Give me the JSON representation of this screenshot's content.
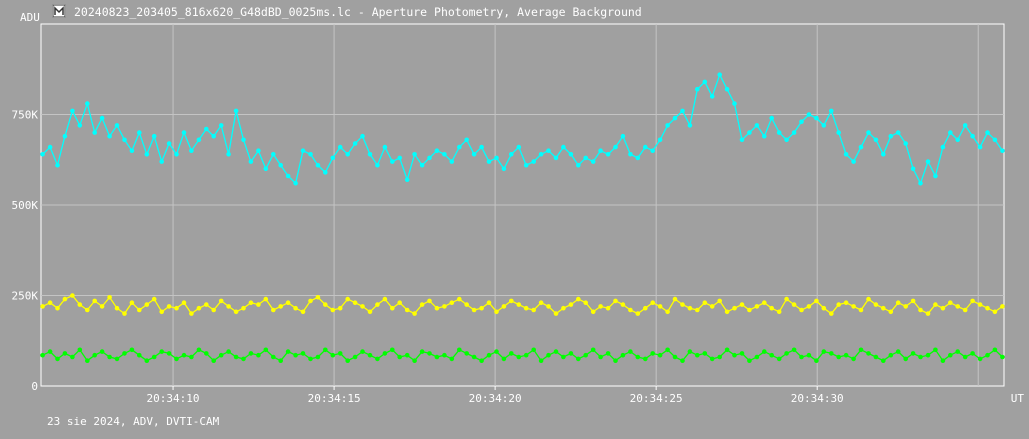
{
  "window": {
    "title": "20240823_203405_816x620_G48dBD_0025ms.lc - Aperture Photometry, Average Background",
    "footer": "23 sie 2024, ADV, DVTI-CAM"
  },
  "chart_data": {
    "type": "line",
    "title": "20240823_203405_816x620_G48dBD_0025ms.lc - Aperture Photometry, Average Background",
    "ylabel": "ADU",
    "xlabel": "UT",
    "ylim": [
      0,
      1000000
    ],
    "y_ticks": [
      {
        "value": 0,
        "label": "0"
      },
      {
        "value": 250000,
        "label": "250K"
      },
      {
        "value": 500000,
        "label": "500K"
      },
      {
        "value": 750000,
        "label": "750K"
      }
    ],
    "x_ticks": [
      {
        "value": 9.75,
        "label": "20:34:10"
      },
      {
        "value": 14.75,
        "label": "20:34:15"
      },
      {
        "value": 19.75,
        "label": "20:34:20"
      },
      {
        "value": 24.75,
        "label": "20:34:25"
      },
      {
        "value": 29.75,
        "label": "20:34:30"
      }
    ],
    "x_range_seconds": [
      5.65,
      35.55
    ],
    "x_unit": "s after 20:34:00 UT",
    "grid": true,
    "series": [
      {
        "color": "#00ffff",
        "x_start": 5.7,
        "x_end": 35.5,
        "values": [
          640000,
          660000,
          610000,
          690000,
          760000,
          720000,
          780000,
          700000,
          740000,
          690000,
          720000,
          680000,
          650000,
          700000,
          640000,
          690000,
          620000,
          670000,
          640000,
          700000,
          650000,
          680000,
          710000,
          690000,
          720000,
          640000,
          760000,
          680000,
          620000,
          650000,
          600000,
          640000,
          610000,
          580000,
          560000,
          650000,
          640000,
          610000,
          590000,
          630000,
          660000,
          640000,
          670000,
          690000,
          640000,
          610000,
          660000,
          620000,
          630000,
          570000,
          640000,
          610000,
          630000,
          650000,
          640000,
          620000,
          660000,
          680000,
          640000,
          660000,
          620000,
          630000,
          600000,
          640000,
          660000,
          610000,
          620000,
          640000,
          650000,
          630000,
          660000,
          640000,
          610000,
          630000,
          620000,
          650000,
          640000,
          660000,
          690000,
          640000,
          630000,
          660000,
          650000,
          680000,
          720000,
          740000,
          760000,
          720000,
          820000,
          840000,
          800000,
          860000,
          820000,
          780000,
          680000,
          700000,
          720000,
          690000,
          740000,
          700000,
          680000,
          700000,
          730000,
          750000,
          740000,
          720000,
          760000,
          700000,
          640000,
          620000,
          660000,
          700000,
          680000,
          640000,
          690000,
          700000,
          670000,
          600000,
          560000,
          620000,
          580000,
          660000,
          700000,
          680000,
          720000,
          690000,
          660000,
          700000,
          680000,
          650000
        ]
      },
      {
        "color": "#ffff00",
        "x_start": 5.7,
        "x_end": 35.5,
        "values": [
          220000,
          230000,
          215000,
          240000,
          250000,
          225000,
          210000,
          235000,
          220000,
          245000,
          215000,
          200000,
          230000,
          210000,
          225000,
          240000,
          205000,
          220000,
          215000,
          230000,
          200000,
          215000,
          225000,
          210000,
          235000,
          220000,
          205000,
          215000,
          230000,
          225000,
          240000,
          210000,
          220000,
          230000,
          215000,
          205000,
          235000,
          245000,
          225000,
          210000,
          215000,
          240000,
          230000,
          220000,
          205000,
          225000,
          240000,
          215000,
          230000,
          210000,
          200000,
          225000,
          235000,
          215000,
          220000,
          230000,
          240000,
          225000,
          210000,
          215000,
          230000,
          205000,
          220000,
          235000,
          225000,
          215000,
          210000,
          230000,
          220000,
          200000,
          215000,
          225000,
          240000,
          230000,
          205000,
          220000,
          215000,
          235000,
          225000,
          210000,
          200000,
          215000,
          230000,
          220000,
          205000,
          240000,
          225000,
          215000,
          210000,
          230000,
          220000,
          235000,
          205000,
          215000,
          225000,
          210000,
          220000,
          230000,
          215000,
          205000,
          240000,
          225000,
          210000,
          220000,
          235000,
          215000,
          200000,
          225000,
          230000,
          220000,
          210000,
          240000,
          225000,
          215000,
          205000,
          230000,
          220000,
          235000,
          210000,
          200000,
          225000,
          215000,
          230000,
          220000,
          210000,
          235000,
          225000,
          215000,
          205000,
          220000
        ]
      },
      {
        "color": "#00ff00",
        "x_start": 5.7,
        "x_end": 35.5,
        "values": [
          85000,
          95000,
          75000,
          90000,
          80000,
          100000,
          70000,
          85000,
          95000,
          80000,
          75000,
          90000,
          100000,
          85000,
          70000,
          80000,
          95000,
          90000,
          75000,
          85000,
          80000,
          100000,
          90000,
          70000,
          85000,
          95000,
          80000,
          75000,
          90000,
          85000,
          100000,
          80000,
          70000,
          95000,
          85000,
          90000,
          75000,
          80000,
          100000,
          85000,
          90000,
          70000,
          80000,
          95000,
          85000,
          75000,
          90000,
          100000,
          80000,
          85000,
          70000,
          95000,
          90000,
          80000,
          85000,
          75000,
          100000,
          90000,
          80000,
          70000,
          85000,
          95000,
          75000,
          90000,
          80000,
          85000,
          100000,
          70000,
          85000,
          95000,
          80000,
          90000,
          75000,
          85000,
          100000,
          80000,
          90000,
          70000,
          85000,
          95000,
          80000,
          75000,
          90000,
          85000,
          100000,
          80000,
          70000,
          95000,
          85000,
          90000,
          75000,
          80000,
          100000,
          85000,
          90000,
          70000,
          80000,
          95000,
          85000,
          75000,
          90000,
          100000,
          80000,
          85000,
          70000,
          95000,
          90000,
          80000,
          85000,
          75000,
          100000,
          90000,
          80000,
          70000,
          85000,
          95000,
          75000,
          90000,
          80000,
          85000,
          100000,
          70000,
          85000,
          95000,
          80000,
          90000,
          75000,
          85000,
          100000,
          80000
        ]
      }
    ]
  }
}
